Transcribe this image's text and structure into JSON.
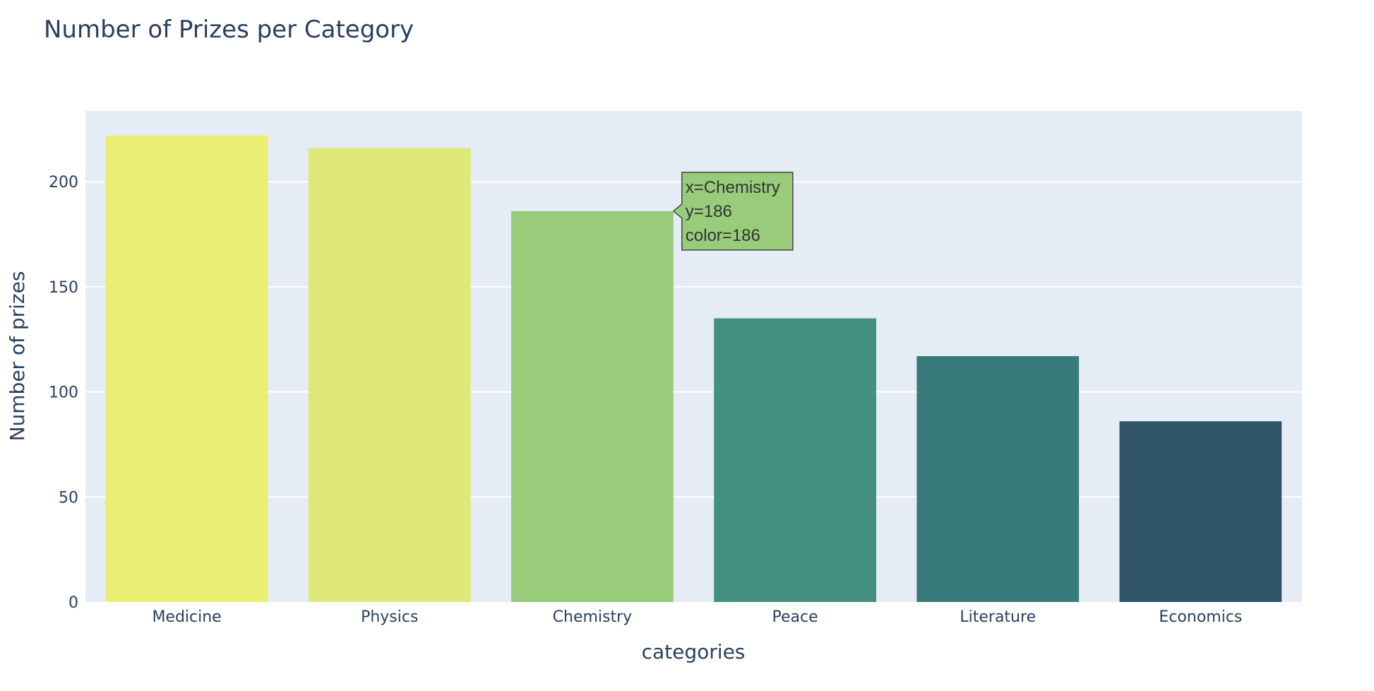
{
  "chart_data": {
    "type": "bar",
    "title": "Number of Prizes per Category",
    "xlabel": "categories",
    "ylabel": "Number of prizes",
    "categories": [
      "Medicine",
      "Physics",
      "Chemistry",
      "Peace",
      "Literature",
      "Economics"
    ],
    "values": [
      222,
      216,
      186,
      135,
      117,
      86
    ],
    "colors": [
      "#eaee72",
      "#dee877",
      "#98cc7b",
      "#439080",
      "#377a7a",
      "#305468"
    ],
    "ylim": [
      0,
      233.7
    ],
    "yticks": [
      0,
      50,
      100,
      150,
      200
    ],
    "grid": true,
    "legend": "none",
    "tooltip": {
      "category_index": 2,
      "lines": [
        "x=Chemistry",
        "y=186",
        "color=186"
      ],
      "background": "#98cc7b"
    }
  },
  "colors": {
    "plot_background": "#e5ecf6",
    "grid": "#ffffff",
    "text": "#2a3f5f"
  }
}
